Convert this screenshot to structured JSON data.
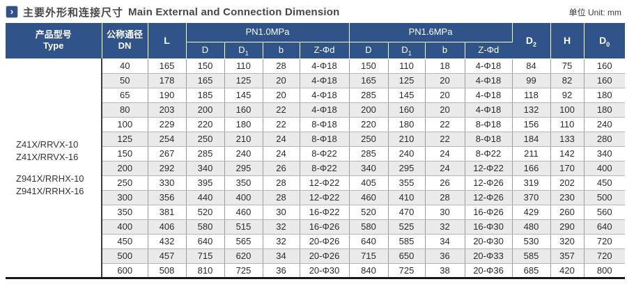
{
  "title": {
    "zh": "主要外形和连接尺寸",
    "en": "Main External and Connection Dimension"
  },
  "unit_label": "单位 Unit: mm",
  "icons": {
    "section_arrow_icon": "chevron-right-in-square",
    "glyph": "›"
  },
  "colors": {
    "header_bg": "#30538a",
    "stripe": "#eaeaea",
    "accent": "#2f5289"
  },
  "table": {
    "headers": {
      "type_zh": "产品型号",
      "type_en": "Type",
      "dn_zh": "公称通径",
      "dn_en": "DN",
      "l": "L",
      "pn10": "PN1.0MPa",
      "pn16": "PN1.6MPa",
      "sub_cols": [
        {
          "b": "D",
          "s": ""
        },
        {
          "b": "D",
          "s": "1"
        },
        {
          "b": "b",
          "s": ""
        },
        {
          "b": "Z-Φd",
          "s": ""
        }
      ],
      "d2": {
        "b": "D",
        "s": "2"
      },
      "h": {
        "b": "H",
        "s": ""
      },
      "d0": {
        "b": "D",
        "s": "0"
      }
    },
    "models": [
      "Z41X/RRVX-10",
      "Z41X/RRVX-16",
      "Z941X/RRHX-10",
      "Z941X/RRHX-16"
    ],
    "columns_order": [
      "DN",
      "L",
      "PN1.0 D",
      "PN1.0 D1",
      "PN1.0 b",
      "PN1.0 Z-Φd",
      "PN1.6 D",
      "PN1.6 D1",
      "PN1.6 b",
      "PN1.6 Z-Φd",
      "D2",
      "H",
      "D0"
    ],
    "rows": [
      [
        "40",
        "165",
        "150",
        "110",
        "28",
        "4-Φ18",
        "150",
        "110",
        "18",
        "4-Φ18",
        "84",
        "75",
        "160"
      ],
      [
        "50",
        "178",
        "165",
        "125",
        "20",
        "4-Φ18",
        "165",
        "125",
        "20",
        "4-Φ18",
        "99",
        "82",
        "160"
      ],
      [
        "65",
        "190",
        "185",
        "145",
        "20",
        "4-Φ18",
        "285",
        "145",
        "20",
        "4-Φ18",
        "118",
        "92",
        "180"
      ],
      [
        "80",
        "203",
        "200",
        "160",
        "22",
        "4-Φ18",
        "200",
        "160",
        "20",
        "4-Φ18",
        "132",
        "100",
        "180"
      ],
      [
        "100",
        "229",
        "220",
        "180",
        "22",
        "8-Φ18",
        "220",
        "180",
        "22",
        "8-Φ18",
        "156",
        "110",
        "240"
      ],
      [
        "125",
        "254",
        "250",
        "210",
        "24",
        "8-Φ18",
        "250",
        "210",
        "22",
        "8-Φ18",
        "184",
        "133",
        "280"
      ],
      [
        "150",
        "267",
        "285",
        "240",
        "24",
        "8-Φ22",
        "285",
        "240",
        "24",
        "8-Φ22",
        "211",
        "142",
        "340"
      ],
      [
        "200",
        "292",
        "340",
        "295",
        "26",
        "8-Φ22",
        "340",
        "295",
        "24",
        "12-Φ22",
        "166",
        "170",
        "400"
      ],
      [
        "250",
        "330",
        "395",
        "350",
        "28",
        "12-Φ22",
        "405",
        "355",
        "26",
        "12-Φ26",
        "319",
        "202",
        "450"
      ],
      [
        "300",
        "356",
        "440",
        "400",
        "28",
        "12-Φ22",
        "460",
        "410",
        "28",
        "12-Φ26",
        "370",
        "230",
        "500"
      ],
      [
        "350",
        "381",
        "520",
        "460",
        "30",
        "16-Φ22",
        "520",
        "470",
        "30",
        "16-Φ26",
        "429",
        "260",
        "560"
      ],
      [
        "400",
        "406",
        "580",
        "515",
        "32",
        "16-Φ26",
        "580",
        "525",
        "32",
        "16-Φ30",
        "480",
        "290",
        "640"
      ],
      [
        "450",
        "432",
        "640",
        "565",
        "32",
        "20-Φ26",
        "640",
        "585",
        "34",
        "20-Φ30",
        "530",
        "320",
        "720"
      ],
      [
        "500",
        "457",
        "715",
        "620",
        "34",
        "20-Φ26",
        "715",
        "650",
        "36",
        "20-Φ33",
        "585",
        "357",
        "720"
      ],
      [
        "600",
        "508",
        "810",
        "725",
        "36",
        "20-Φ30",
        "840",
        "725",
        "38",
        "20-Φ36",
        "685",
        "420",
        "800"
      ]
    ]
  }
}
